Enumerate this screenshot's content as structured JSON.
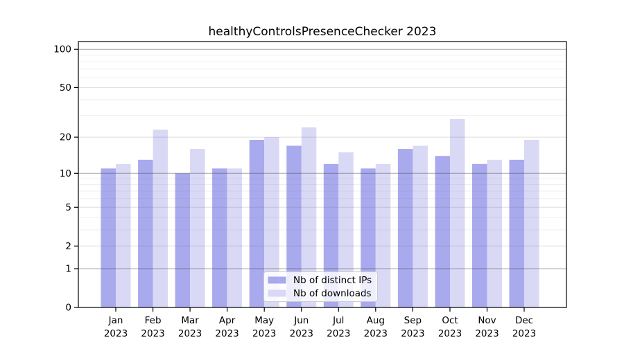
{
  "figure": {
    "background": "#ffffff"
  },
  "chart_data": {
    "type": "bar",
    "title": "healthyControlsPresenceChecker 2023",
    "categories": [
      "Jan 2023",
      "Feb 2023",
      "Mar 2023",
      "Apr 2023",
      "May 2023",
      "Jun 2023",
      "Jul 2023",
      "Aug 2023",
      "Sep 2023",
      "Oct 2023",
      "Nov 2023",
      "Dec 2023"
    ],
    "month_labels": [
      "Jan",
      "Feb",
      "Mar",
      "Apr",
      "May",
      "Jun",
      "Jul",
      "Aug",
      "Sep",
      "Oct",
      "Nov",
      "Dec"
    ],
    "year_label": "2023",
    "series": [
      {
        "name": "Nb of distinct IPs",
        "color": "#a9a9ee",
        "values": [
          11,
          13,
          10,
          11,
          19,
          17,
          12,
          11,
          16,
          14,
          12,
          13
        ]
      },
      {
        "name": "Nb of downloads",
        "color": "#d9d9f6",
        "values": [
          12,
          23,
          16,
          11,
          20,
          24,
          15,
          12,
          17,
          28,
          13,
          19
        ]
      }
    ],
    "xlabel": "",
    "ylabel": "",
    "yscale": "log1p",
    "ylim": [
      0,
      115
    ],
    "yticks_labeled": [
      100,
      50,
      20,
      10,
      5,
      2,
      1,
      0
    ],
    "yticks_major": [
      100,
      10,
      1
    ],
    "yticks_minor_unlabeled": [
      3,
      4,
      6,
      7,
      8,
      9,
      30,
      40,
      60,
      70,
      80,
      90
    ],
    "grid": true,
    "legend": {
      "position": "lower center",
      "entries": [
        "Nb of distinct IPs",
        "Nb of downloads"
      ]
    }
  }
}
